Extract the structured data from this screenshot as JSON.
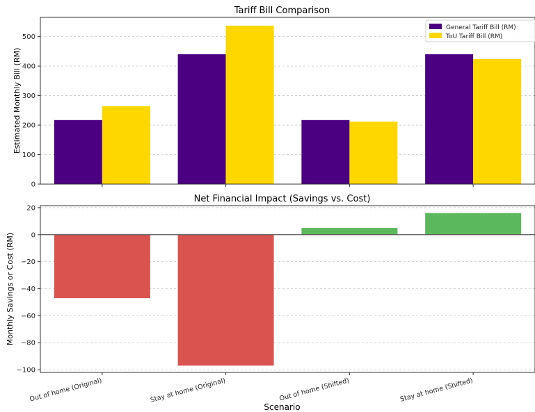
{
  "chart_data": [
    {
      "type": "bar",
      "title": "Tariff Bill Comparison",
      "xlabel": "",
      "ylabel": "Estimated Monthly Bill (RM)",
      "categories": [
        "Out of home (Original)",
        "Stay at home (Original)",
        "Out of home (Shifted)",
        "Stay at home (Shifted)"
      ],
      "series": [
        {
          "name": "General Tariff Bill (RM)",
          "color": "#4b0082",
          "values": [
            217,
            440,
            217,
            440
          ]
        },
        {
          "name": "ToU Tariff Bill (RM)",
          "color": "#ffd700",
          "values": [
            264,
            537,
            212,
            424
          ]
        }
      ],
      "ylim": [
        0,
        565
      ],
      "yticks": [
        0,
        100,
        200,
        300,
        400,
        500
      ],
      "ytick_labels": [
        "0",
        "100",
        "200",
        "300",
        "400",
        "500"
      ],
      "grid": "y dashed",
      "legend": "top-right"
    },
    {
      "type": "bar",
      "title": "Net Financial Impact (Savings vs. Cost)",
      "xlabel": "Scenario",
      "ylabel": "Monthly Savings or Cost (RM)",
      "categories": [
        "Out of home (Original)",
        "Stay at home (Original)",
        "Out of home (Shifted)",
        "Stay at home (Shifted)"
      ],
      "values": [
        -47,
        -97,
        5,
        16
      ],
      "bar_colors": [
        "#d9534f",
        "#d9534f",
        "#5cb85c",
        "#5cb85c"
      ],
      "ylim": [
        -102,
        21.5
      ],
      "yticks": [
        -100,
        -80,
        -60,
        -40,
        -20,
        0,
        20
      ],
      "ytick_labels": [
        "−100",
        "−80",
        "−60",
        "−40",
        "−20",
        "0",
        "20"
      ],
      "grid": "y dashed",
      "zero_line": true
    }
  ]
}
